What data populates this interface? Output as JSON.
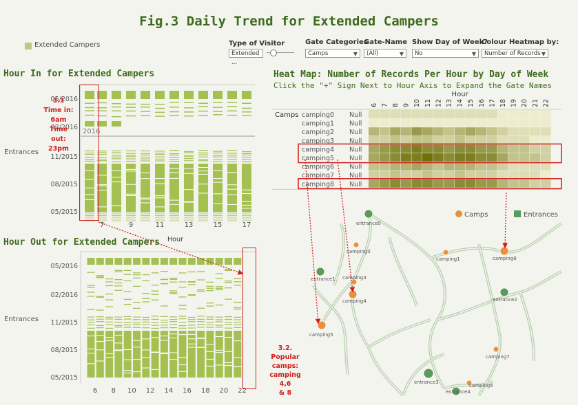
{
  "title": "Fig.3 Daily Trend for Extended Campers",
  "legend": {
    "label": "Extended Campers",
    "color": "#b7cc7f"
  },
  "filters": {
    "type_of_visitor": {
      "label": "Type of Visitor",
      "value": "Extended ..."
    },
    "gate_categories": {
      "label": "Gate Categories",
      "value": "Camps"
    },
    "gate_name": {
      "label": "Gate-Name",
      "value": "(All)"
    },
    "show_day": {
      "label": "Show Day of Week?",
      "value": "No"
    },
    "colour_heatmap": {
      "label": "Colour Heatmap by:",
      "value": "Number of Records"
    }
  },
  "colors": {
    "bar": "#a4c050",
    "bar_light": "#b7cc7f",
    "title": "#3f6b1f",
    "annotation": "#d01c1c",
    "camp_dot": "#e8903a",
    "entrance_dot": "#5a9a5a"
  },
  "hour_in": {
    "title": "Hour In for Extended Campers",
    "row_label": "Entrances",
    "year_label": "2016",
    "date_ticks": [
      "05/2016",
      "02/2016",
      "11/2015",
      "08/2015",
      "05/2015"
    ],
    "hour_ticks": [
      "7",
      "9",
      "11",
      "13",
      "15",
      "17"
    ]
  },
  "hour_out": {
    "title": "Hour Out  for Extended Campers",
    "axis_label": "Hour",
    "row_label": "Entrances",
    "date_ticks": [
      "05/2016",
      "02/2016",
      "11/2015",
      "08/2015",
      "05/2015"
    ],
    "hour_ticks": [
      "6",
      "8",
      "10",
      "12",
      "14",
      "16",
      "18",
      "20",
      "22"
    ]
  },
  "annotations": {
    "note1": [
      "3.1",
      "Time in:",
      "6am",
      "Time out:",
      "23pm"
    ],
    "note2": [
      "3.2. Popular",
      "camps:",
      "camping 4,6",
      "& 8"
    ]
  },
  "heatmap": {
    "title": "Heat Map: Number of Records  Per Hour by Day of Week",
    "subtitle": "Click the \"+\" Sign Next to Hour Axis to Expand the Gate Names",
    "axis_label": "Hour",
    "row_header": "Camps",
    "hours": [
      "6",
      "7",
      "8",
      "9",
      "10",
      "11",
      "12",
      "13",
      "14",
      "15",
      "16",
      "17",
      "18",
      "19",
      "20",
      "21",
      "22"
    ],
    "rows": [
      {
        "name": "camping0",
        "null": "Null",
        "values": [
          1,
          1,
          1,
          1,
          1,
          1,
          1,
          1,
          1,
          1,
          1,
          1,
          0,
          0,
          0,
          0,
          0
        ]
      },
      {
        "name": "camping1",
        "null": "Null",
        "values": [
          0,
          0,
          0,
          0,
          0,
          0,
          0,
          0,
          0,
          0,
          0,
          0,
          0,
          0,
          0,
          0,
          0
        ]
      },
      {
        "name": "camping2",
        "null": "Null",
        "values": [
          4,
          3,
          5,
          4,
          6,
          5,
          4,
          3,
          4,
          5,
          4,
          3,
          2,
          1,
          1,
          1,
          1
        ]
      },
      {
        "name": "camping3",
        "null": "Null",
        "values": [
          2,
          2,
          3,
          2,
          3,
          3,
          2,
          2,
          3,
          2,
          2,
          2,
          1,
          1,
          1,
          0,
          0
        ]
      },
      {
        "name": "camping4",
        "null": "Null",
        "values": [
          5,
          6,
          7,
          7,
          8,
          7,
          7,
          6,
          7,
          7,
          6,
          6,
          4,
          3,
          3,
          2,
          2
        ]
      },
      {
        "name": "camping5",
        "null": "Null",
        "values": [
          5,
          6,
          7,
          8,
          8,
          9,
          8,
          7,
          8,
          8,
          7,
          7,
          5,
          3,
          3,
          3,
          2
        ]
      },
      {
        "name": "camping6",
        "null": "Null",
        "values": [
          3,
          3,
          4,
          4,
          5,
          4,
          3,
          4,
          4,
          4,
          3,
          3,
          2,
          1,
          1,
          1,
          1
        ]
      },
      {
        "name": "camping7",
        "null": "Null",
        "values": [
          2,
          2,
          3,
          2,
          2,
          3,
          2,
          2,
          3,
          2,
          2,
          2,
          1,
          1,
          1,
          1,
          0
        ]
      },
      {
        "name": "camping8",
        "null": "Null",
        "values": [
          5,
          6,
          7,
          6,
          7,
          7,
          6,
          6,
          7,
          7,
          6,
          6,
          4,
          3,
          3,
          2,
          2
        ]
      }
    ]
  },
  "map": {
    "legend_camps": "Camps",
    "legend_entrances": "Entrances",
    "nodes": [
      {
        "label": "entrance0",
        "type": "entrance"
      },
      {
        "label": "camping0",
        "type": "camp"
      },
      {
        "label": "entrance1",
        "type": "entrance"
      },
      {
        "label": "camping3",
        "type": "camp"
      },
      {
        "label": "camping4",
        "type": "camp"
      },
      {
        "label": "camping1",
        "type": "camp"
      },
      {
        "label": "camping8",
        "type": "camp"
      },
      {
        "label": "entrance2",
        "type": "entrance"
      },
      {
        "label": "camping5",
        "type": "camp"
      },
      {
        "label": "camping7",
        "type": "camp"
      },
      {
        "label": "entrance3",
        "type": "entrance"
      },
      {
        "label": "camping6",
        "type": "camp"
      },
      {
        "label": "entrance4",
        "type": "entrance"
      }
    ]
  }
}
